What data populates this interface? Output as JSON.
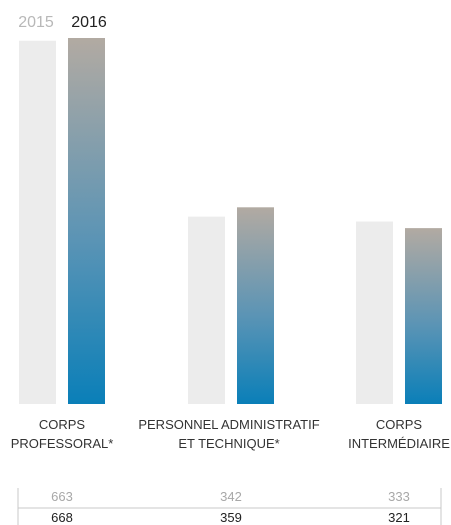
{
  "chart_data": {
    "type": "bar",
    "categories": [
      [
        "CORPS",
        "PROFESSORAL*"
      ],
      [
        "PERSONNEL ADMINISTRATIF",
        "ET TECHNIQUE*"
      ],
      [
        "CORPS",
        "INTERMÉDIAIRE"
      ]
    ],
    "series": [
      {
        "name": "2015",
        "values": [
          663,
          342,
          333
        ]
      },
      {
        "name": "2016",
        "values": [
          668,
          359,
          321
        ]
      }
    ],
    "ylim": [
      0,
      668
    ],
    "legend": "top-left",
    "grid": false,
    "colors": {
      "2015": "#ececec",
      "2016_top": "#b2aaa2",
      "2016_mid": "#5b94b5",
      "2016_bottom": "#0a7fb8",
      "legend_2015_text": "#b8b8b8",
      "legend_2016_text": "#222222",
      "row_2015_text": "#a8a8a8",
      "row_2016_text": "#222222",
      "rule": "#c8c8c8"
    }
  }
}
